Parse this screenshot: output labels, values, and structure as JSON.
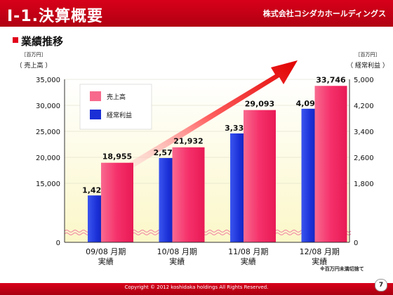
{
  "header": {
    "title": "Ⅰ-1.決算概要",
    "company": "株式会社コシダカホールディングス"
  },
  "section": {
    "title": "業績推移"
  },
  "chart_data": {
    "type": "bar",
    "categories": [
      "09/08 月期",
      "10/08 月期",
      "11/08 月期",
      "12/08 月期"
    ],
    "category_sublabel": "実績",
    "left_axis": {
      "unit": "［百万円］",
      "label": "（ 売上高 ）",
      "ticks": [
        "0",
        "15,000",
        "20,000",
        "25,000",
        "30,000",
        "35,000"
      ],
      "range": [
        10000,
        35000
      ],
      "broken": true
    },
    "right_axis": {
      "unit": "［百万円］",
      "label": "（ 経常利益 ）",
      "ticks": [
        "0",
        "1,800",
        "2,600",
        "3,400",
        "4,200",
        "5,000"
      ],
      "range": [
        1000,
        5000
      ],
      "broken": true
    },
    "series": [
      {
        "name": "売上高",
        "axis": "left",
        "color": "#f5306a",
        "values": [
          18955,
          21932,
          29093,
          33746
        ],
        "labels": [
          "18,955",
          "21,932",
          "29,093",
          "33,746"
        ]
      },
      {
        "name": "経常利益",
        "axis": "right",
        "color": "#1a2fd6",
        "values": [
          1427,
          2579,
          3336,
          4096
        ],
        "labels": [
          "1,427",
          "2,579",
          "3,336",
          "4,096"
        ]
      }
    ],
    "legend_placement": "top-left",
    "trend_arrow": true
  },
  "note": "※百万円未満切捨て",
  "footer": {
    "copyright": "Copyright © 2012 koshidaka holdings All Rights Reserved.",
    "page": "7"
  }
}
